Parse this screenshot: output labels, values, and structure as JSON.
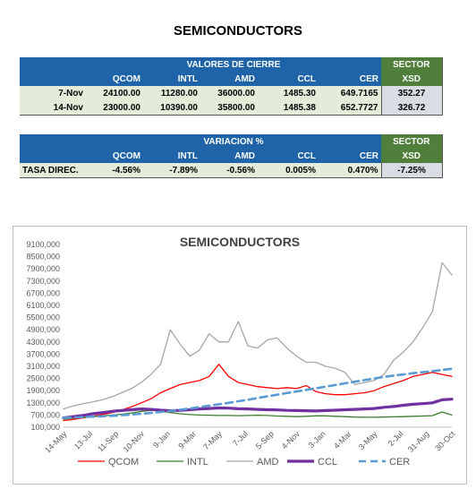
{
  "page_title": "SEMICONDUCTORS",
  "table1": {
    "header_title": "VALORES DE CIERRE",
    "sector_label": "SECTOR",
    "sector_code": "XSD",
    "columns": [
      "QCOM",
      "INTL",
      "AMD",
      "CCL",
      "CER"
    ],
    "rows": [
      {
        "label": "7-Nov",
        "values": [
          "24100.00",
          "11280.00",
          "36000.00",
          "1485.30",
          "649.7165"
        ],
        "sector": "352.27"
      },
      {
        "label": "14-Nov",
        "values": [
          "23000.00",
          "10390.00",
          "35800.00",
          "1485.38",
          "652.7727"
        ],
        "sector": "326.72"
      }
    ]
  },
  "table2": {
    "header_title": "VARIACION %",
    "sector_label": "SECTOR",
    "sector_code": "XSD",
    "columns": [
      "QCOM",
      "INTL",
      "AMD",
      "CCL",
      "CER"
    ],
    "row": {
      "label": "TASA DIREC.",
      "values": [
        "-4.56%",
        "-7.89%",
        "-0.56%",
        "0.005%",
        "0.470%"
      ],
      "sector": "-7.25%"
    }
  },
  "chart_data": {
    "type": "line",
    "title": "SEMICONDUCTORS",
    "ylim": [
      100000,
      9100000
    ],
    "y_ticks": [
      "9100,000",
      "8500,000",
      "7900,000",
      "7300,000",
      "6700,000",
      "6100,000",
      "5500,000",
      "4900,000",
      "4300,000",
      "3700,000",
      "3100,000",
      "2500,000",
      "1900,000",
      "1300,000",
      "700,000",
      "100,000"
    ],
    "x_ticks": [
      "14-May",
      "13-Jul",
      "11-Sep",
      "10-Nov",
      "9-Jan",
      "9-Mar",
      "7-May",
      "7-Jul",
      "5-Sep",
      "4-Nov",
      "3-Jan",
      "4-Mar",
      "3-May",
      "2-Jul",
      "31-Aug",
      "30-Oct"
    ],
    "legend_position": "bottom",
    "grid": false,
    "series": [
      {
        "name": "QCOM",
        "color": "#ff0000",
        "dash": "",
        "width": 1.3,
        "values": [
          430000,
          480000,
          560000,
          640000,
          720000,
          820000,
          950000,
          1100000,
          1300000,
          1500000,
          1800000,
          2000000,
          2200000,
          2300000,
          2400000,
          2600000,
          3200000,
          2600000,
          2300000,
          2200000,
          2100000,
          2050000,
          2000000,
          2050000,
          2000000,
          2150000,
          1850000,
          1750000,
          1700000,
          1700000,
          1750000,
          1800000,
          1900000,
          2100000,
          2250000,
          2400000,
          2600000,
          2700000,
          2800000,
          2700000,
          2600000
        ]
      },
      {
        "name": "INTL",
        "color": "#3a7d2c",
        "dash": "",
        "width": 1.3,
        "values": [
          500000,
          540000,
          580000,
          620000,
          660000,
          700000,
          740000,
          800000,
          880000,
          930000,
          900000,
          820000,
          760000,
          720000,
          700000,
          690000,
          680000,
          680000,
          670000,
          680000,
          690000,
          680000,
          650000,
          640000,
          620000,
          640000,
          660000,
          660000,
          640000,
          620000,
          600000,
          590000,
          590000,
          600000,
          610000,
          620000,
          640000,
          650000,
          670000,
          850000,
          700000
        ]
      },
      {
        "name": "AMD",
        "color": "#a6a6a6",
        "dash": "",
        "width": 1.3,
        "values": [
          1000000,
          1150000,
          1250000,
          1350000,
          1450000,
          1600000,
          1800000,
          2000000,
          2300000,
          2700000,
          3200000,
          4900000,
          4200000,
          3600000,
          3900000,
          4700000,
          4300000,
          4300000,
          5300000,
          4100000,
          4000000,
          4400000,
          4500000,
          4000000,
          3600000,
          3300000,
          3300000,
          3100000,
          3000000,
          2800000,
          2200000,
          2300000,
          2400000,
          2700000,
          3400000,
          3800000,
          4300000,
          5000000,
          5800000,
          8200000,
          7600000
        ]
      },
      {
        "name": "CCL",
        "color": "#7030a0",
        "dash": "",
        "width": 3.2,
        "values": [
          560000,
          620000,
          680000,
          760000,
          820000,
          880000,
          920000,
          960000,
          1000000,
          980000,
          940000,
          910000,
          930000,
          960000,
          1000000,
          1020000,
          1050000,
          1040000,
          1010000,
          1000000,
          980000,
          960000,
          950000,
          930000,
          920000,
          910000,
          900000,
          920000,
          940000,
          960000,
          980000,
          1000000,
          1020000,
          1080000,
          1120000,
          1180000,
          1230000,
          1260000,
          1300000,
          1450000,
          1480000
        ]
      },
      {
        "name": "CER",
        "color": "#5b9bd5",
        "dash": "8,5",
        "width": 2.6,
        "values": [
          560000,
          580000,
          600000,
          620000,
          640000,
          660000,
          690000,
          720000,
          760000,
          800000,
          850000,
          900000,
          960000,
          1020000,
          1090000,
          1160000,
          1230000,
          1300000,
          1380000,
          1450000,
          1540000,
          1620000,
          1700000,
          1780000,
          1860000,
          1940000,
          2020000,
          2100000,
          2180000,
          2260000,
          2340000,
          2420000,
          2500000,
          2580000,
          2640000,
          2700000,
          2760000,
          2810000,
          2860000,
          2920000,
          2980000
        ]
      }
    ]
  }
}
